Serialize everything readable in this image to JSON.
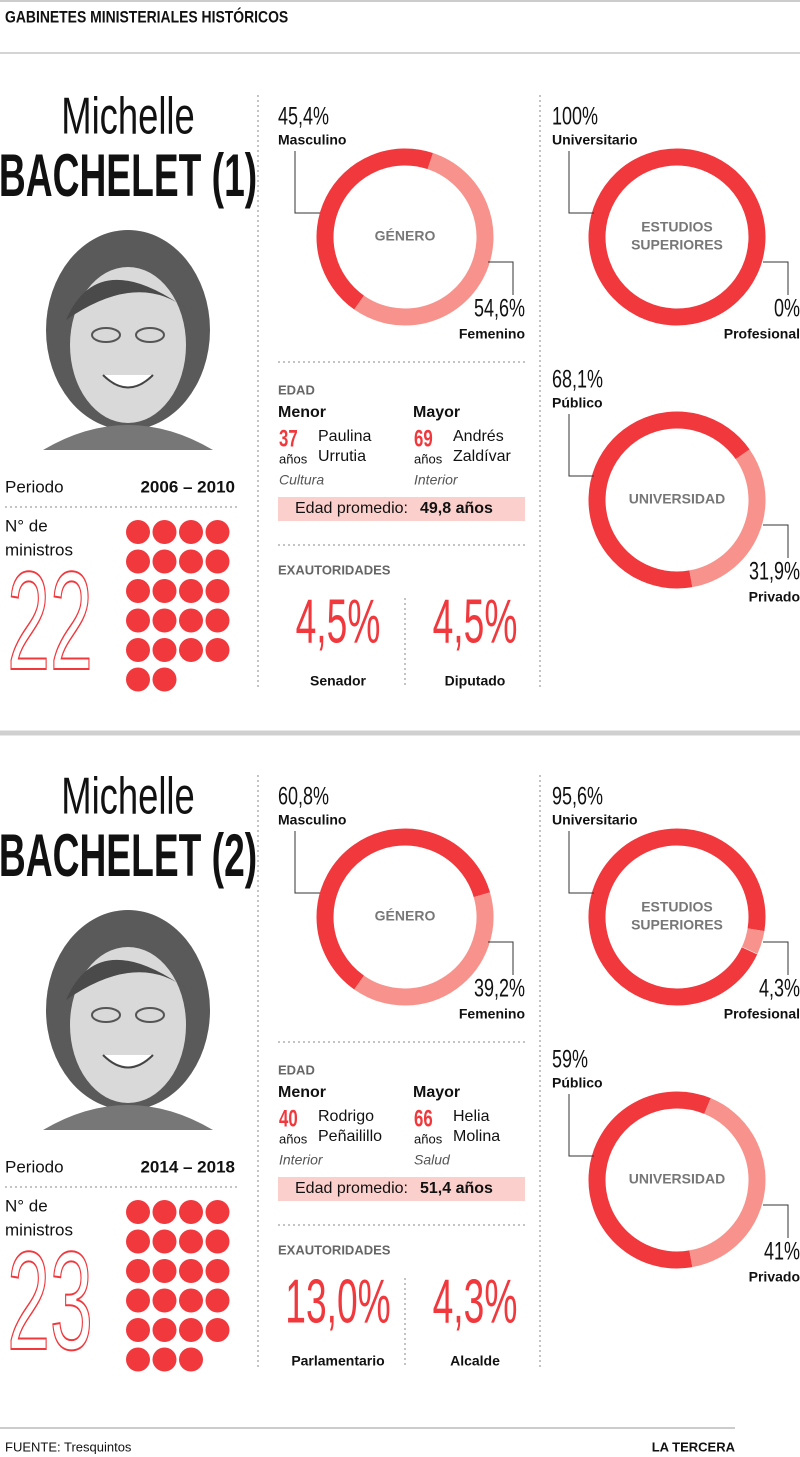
{
  "header": {
    "title": "GABINETES MINISTERIALES HISTÓRICOS"
  },
  "cabinets": [
    {
      "name_first": "Michelle",
      "name_last": "BACHELET (1)",
      "period_label": "Periodo",
      "period": "2006 – 2010",
      "ministers_label": [
        "N° de",
        "ministros"
      ],
      "ministers": 22,
      "genero": {
        "title": [
          "GÉNERO"
        ],
        "slices": [
          {
            "name": "Masculino",
            "value": 45.4,
            "label": "45,4%",
            "color": "#f0383d"
          },
          {
            "name": "Femenino",
            "value": 54.6,
            "label": "54,6%",
            "color": "#f7938c"
          }
        ]
      },
      "estudios": {
        "title": [
          "ESTUDIOS",
          "SUPERIORES"
        ],
        "slices": [
          {
            "name": "Universitario",
            "value": 100,
            "label": "100%",
            "color": "#f0383d"
          },
          {
            "name": "Profesional",
            "value": 0,
            "label": "0%",
            "color": "#f7938c"
          }
        ]
      },
      "universidad": {
        "title": [
          "UNIVERSIDAD"
        ],
        "slices": [
          {
            "name": "Público",
            "value": 68.1,
            "label": "68,1%",
            "color": "#f0383d"
          },
          {
            "name": "Privado",
            "value": 31.9,
            "label": "31,9%",
            "color": "#f7938c"
          }
        ]
      },
      "edad": {
        "title": "EDAD",
        "menor": {
          "label": "Menor",
          "age": 37,
          "unit": "años",
          "name": [
            "Paulina",
            "Urrutia"
          ],
          "area": "Cultura"
        },
        "mayor": {
          "label": "Mayor",
          "age": 69,
          "unit": "años",
          "name": [
            "Andrés",
            "Zaldívar"
          ],
          "area": "Interior"
        },
        "promedio_label": "Edad promedio:",
        "promedio": "49,8 años"
      },
      "exautoridades": {
        "title": "EXAUTORIDADES",
        "items": [
          {
            "label": "4,5%",
            "name": "Senador"
          },
          {
            "label": "4,5%",
            "name": "Diputado"
          }
        ]
      }
    },
    {
      "name_first": "Michelle",
      "name_last": "BACHELET (2)",
      "period_label": "Periodo",
      "period": "2014 – 2018",
      "ministers_label": [
        "N° de",
        "ministros"
      ],
      "ministers": 23,
      "genero": {
        "title": [
          "GÉNERO"
        ],
        "slices": [
          {
            "name": "Masculino",
            "value": 60.8,
            "label": "60,8%",
            "color": "#f0383d"
          },
          {
            "name": "Femenino",
            "value": 39.2,
            "label": "39,2%",
            "color": "#f7938c"
          }
        ]
      },
      "estudios": {
        "title": [
          "ESTUDIOS",
          "SUPERIORES"
        ],
        "slices": [
          {
            "name": "Universitario",
            "value": 95.6,
            "label": "95,6%",
            "color": "#f0383d"
          },
          {
            "name": "Profesional",
            "value": 4.3,
            "label": "4,3%",
            "color": "#f7938c"
          }
        ]
      },
      "universidad": {
        "title": [
          "UNIVERSIDAD"
        ],
        "slices": [
          {
            "name": "Público",
            "value": 59,
            "label": "59%",
            "color": "#f0383d"
          },
          {
            "name": "Privado",
            "value": 41,
            "label": "41%",
            "color": "#f7938c"
          }
        ]
      },
      "edad": {
        "title": "EDAD",
        "menor": {
          "label": "Menor",
          "age": 40,
          "unit": "años",
          "name": [
            "Rodrigo",
            "Peñailillo"
          ],
          "area": "Interior"
        },
        "mayor": {
          "label": "Mayor",
          "age": 66,
          "unit": "años",
          "name": [
            "Helia",
            "Molina"
          ],
          "area": "Salud"
        },
        "promedio_label": "Edad promedio:",
        "promedio": "51,4 años"
      },
      "exautoridades": {
        "title": "EXAUTORIDADES",
        "items": [
          {
            "label": "13,0%",
            "name": "Parlamentario"
          },
          {
            "label": "4,3%",
            "name": "Alcalde"
          }
        ]
      }
    }
  ],
  "footer": {
    "source": "FUENTE: Tresquintos",
    "brand": "LA TERCERA"
  }
}
